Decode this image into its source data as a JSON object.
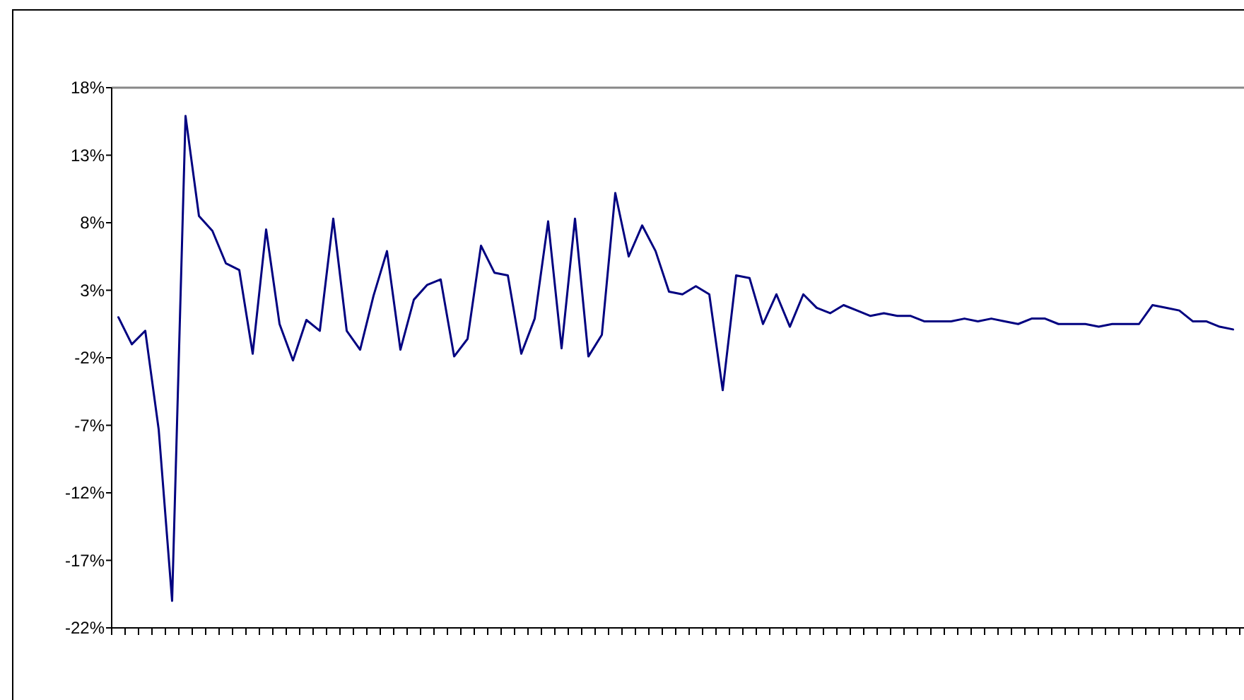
{
  "chart_data": {
    "type": "line",
    "categories": [
      null,
      null,
      null,
      null,
      null,
      null,
      null,
      null,
      null,
      null,
      null,
      null,
      null,
      null,
      null,
      null,
      null,
      null,
      null,
      null,
      null,
      null,
      null,
      null,
      null,
      null,
      null,
      null,
      null,
      null,
      null,
      null,
      null,
      null,
      null,
      null,
      null,
      null,
      null,
      null,
      null,
      null,
      null,
      null,
      null,
      null,
      null,
      null,
      null,
      null,
      null,
      null,
      null,
      null,
      null,
      null,
      null,
      null,
      null,
      null,
      null,
      null,
      null,
      null,
      null,
      null,
      null,
      null,
      null,
      null,
      null,
      null,
      null,
      null,
      null,
      null,
      null,
      null,
      null,
      null,
      null,
      null,
      null,
      null
    ],
    "series": [
      {
        "color": "#000080",
        "values": [
          1,
          -1.0,
          0,
          -7.3,
          -20,
          15.9,
          8.5,
          7.4,
          5.0,
          4.5,
          -1.7,
          7.5,
          0.5,
          -2.2,
          0.8,
          0,
          8.3,
          0,
          -1.4,
          2.6,
          5.9,
          -1.4,
          2.3,
          3.4,
          3.8,
          -1.9,
          -0.6,
          6.3,
          4.3,
          4.1,
          -1.7,
          0.9,
          8.1,
          -1.3,
          8.3,
          -1.9,
          -0.3,
          10.2,
          5.5,
          7.8,
          5.9,
          2.9,
          2.7,
          3.3,
          2.7,
          -4.4,
          4.1,
          3.9,
          0.5,
          2.7,
          0.3,
          2.7,
          1.7,
          1.3,
          1.9,
          1.5,
          1.1,
          1.3,
          1.1,
          1.1,
          0.7,
          0.7,
          0.7,
          0.9,
          0.7,
          0.9,
          0.7,
          0.5,
          0.9,
          0.9,
          0.5,
          0.5,
          0.5,
          0.3,
          0.5,
          0.5,
          0.5,
          1.9,
          1.7,
          1.5,
          0.7,
          0.7,
          0.3,
          0.1
        ]
      }
    ],
    "ylim": [
      -22,
      18
    ],
    "yticks": [
      {
        "value": 18,
        "label": "18%"
      },
      {
        "value": 13,
        "label": "13%"
      },
      {
        "value": 8,
        "label": "8%"
      },
      {
        "value": 3,
        "label": "3%"
      },
      {
        "value": -2,
        "label": "-2%"
      },
      {
        "value": -7,
        "label": "-7%"
      },
      {
        "value": -12,
        "label": "-12%"
      },
      {
        "value": -17,
        "label": "-17%"
      },
      {
        "value": -22,
        "label": "-22%"
      }
    ],
    "tick_labels": "y",
    "grid": false,
    "marker": "none",
    "line_style": "solid"
  }
}
